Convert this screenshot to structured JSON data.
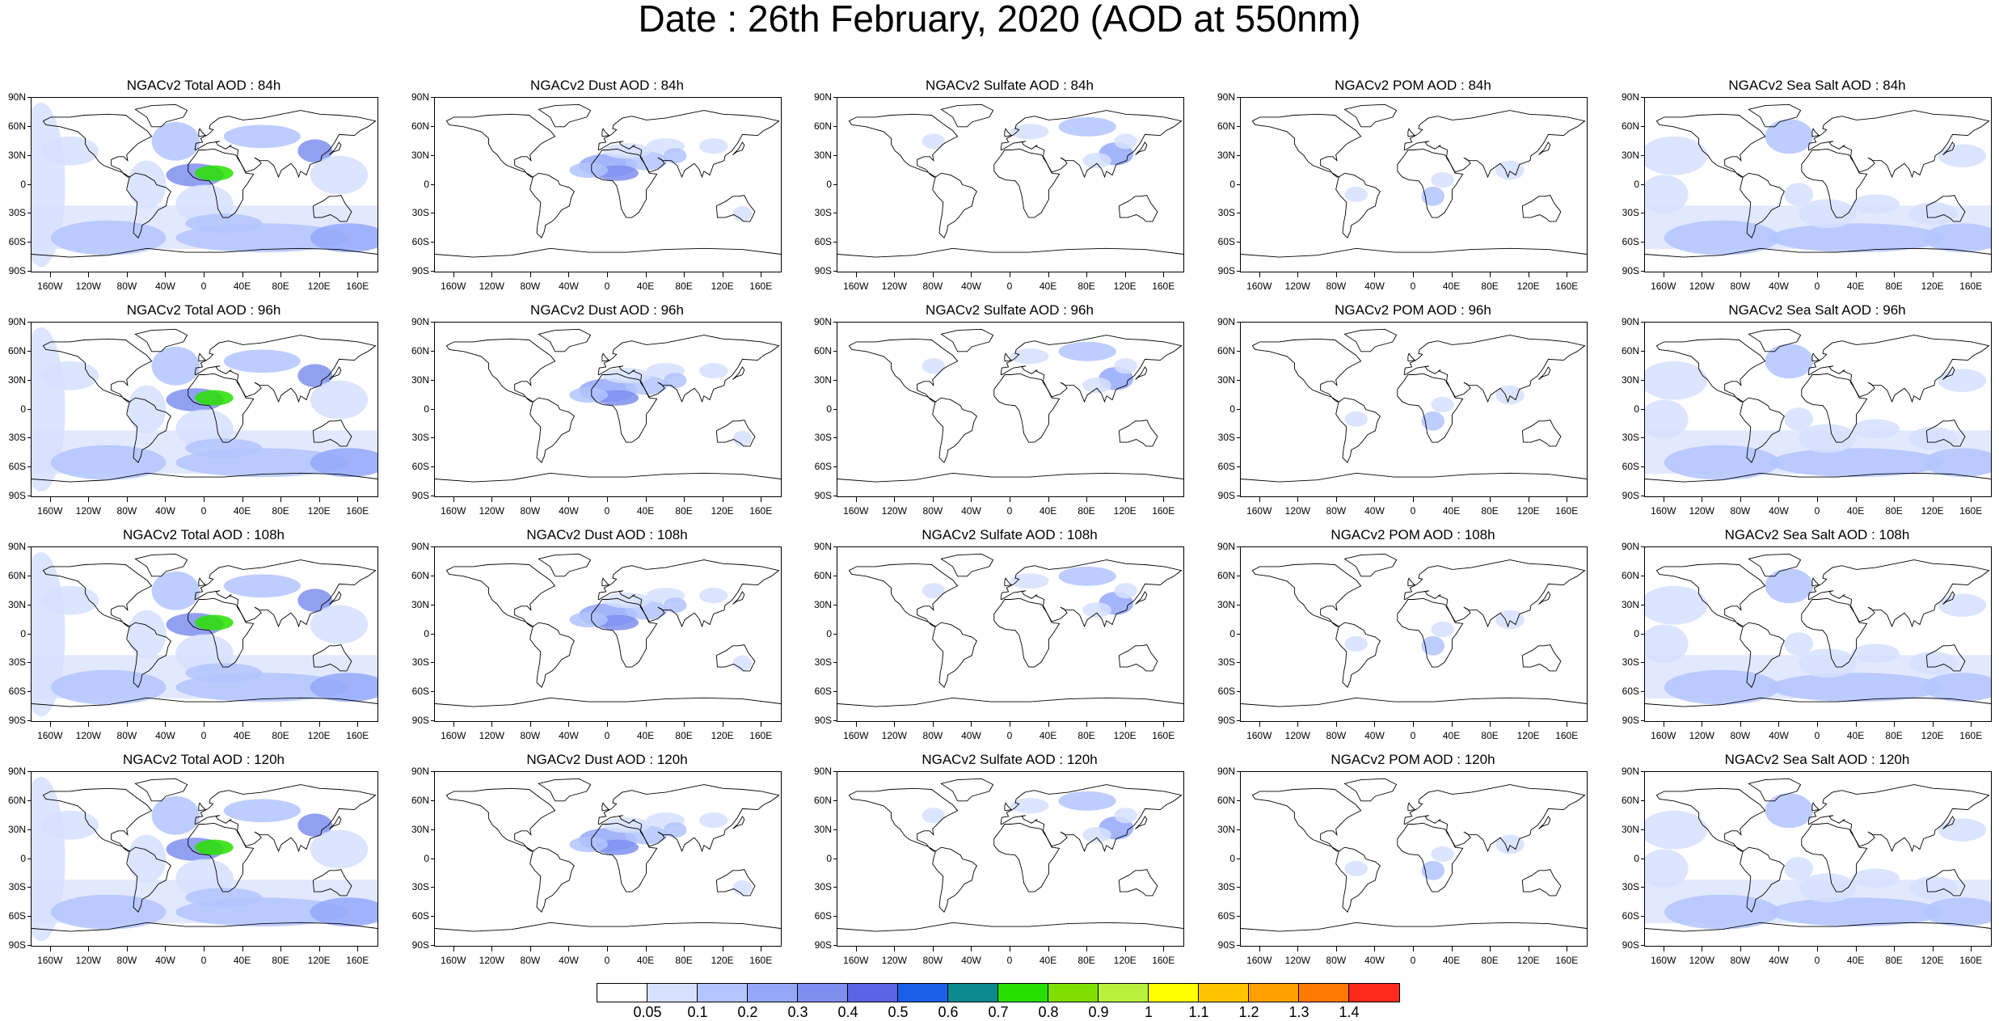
{
  "title": "Date : 26th February, 2020 (AOD at 550nm)",
  "rows": [
    [
      "NGACv2 Total AOD : 84h",
      "NGACv2 Dust AOD : 84h",
      "NGACv2 Sulfate AOD : 84h",
      "NGACv2 POM AOD : 84h",
      "NGACv2 Sea Salt AOD : 84h"
    ],
    [
      "NGACv2 Total AOD : 96h",
      "NGACv2 Dust AOD : 96h",
      "NGACv2 Sulfate AOD : 96h",
      "NGACv2 POM AOD : 96h",
      "NGACv2 Sea Salt AOD : 96h"
    ],
    [
      "NGACv2 Total AOD : 108h",
      "NGACv2 Dust AOD : 108h",
      "NGACv2 Sulfate AOD : 108h",
      "NGACv2 POM AOD : 108h",
      "NGACv2 Sea Salt AOD : 108h"
    ],
    [
      "NGACv2 Total AOD : 120h",
      "NGACv2 Dust AOD : 120h",
      "NGACv2 Sulfate AOD : 120h",
      "NGACv2 POM AOD : 120h",
      "NGACv2 Sea Salt  AOD : 120h"
    ]
  ],
  "panel_types": [
    "total",
    "dust",
    "sulfate",
    "pom",
    "seasalt"
  ],
  "lat_labels": [
    "90N",
    "60N",
    "30N",
    "0",
    "30S",
    "60S",
    "90S"
  ],
  "lon_labels": [
    "160W",
    "120W",
    "80W",
    "40W",
    "0",
    "40E",
    "80E",
    "120E",
    "160E"
  ],
  "lon_values": [
    -160,
    -120,
    -80,
    -40,
    0,
    40,
    80,
    120,
    160
  ],
  "colorbar": {
    "labels": [
      "0.05",
      "0.1",
      "0.2",
      "0.3",
      "0.4",
      "0.5",
      "0.6",
      "0.7",
      "0.8",
      "0.9",
      "1",
      "1.1",
      "1.2",
      "1.3",
      "1.4"
    ],
    "colors": [
      "#ffffff",
      "#d6e0ff",
      "#b3c4ff",
      "#94a8fa",
      "#7f8ff0",
      "#5b63e6",
      "#1b5fe8",
      "#0a8a8f",
      "#27e000",
      "#7fe000",
      "#b8f03c",
      "#ffff00",
      "#ffc400",
      "#ffa000",
      "#ff7a00",
      "#ff2a1a"
    ]
  }
}
